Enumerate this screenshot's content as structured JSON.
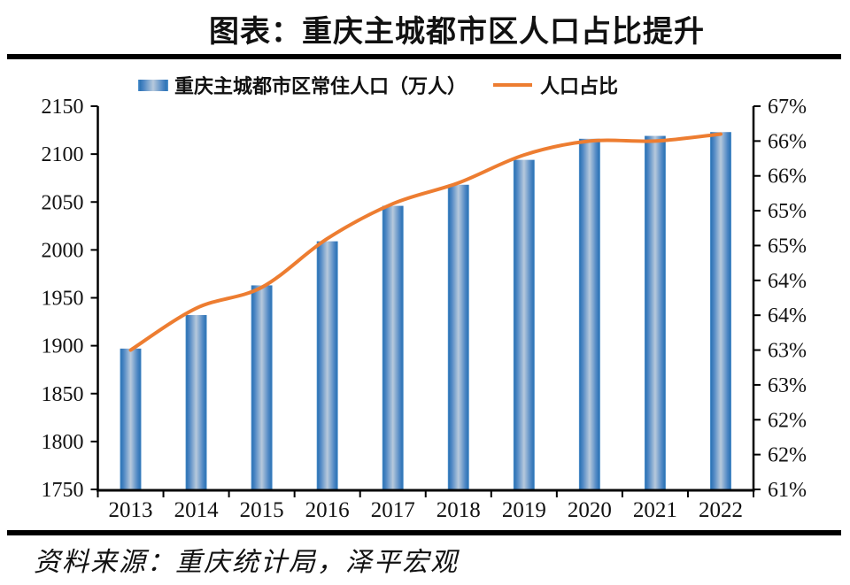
{
  "header": {
    "title": "图表：重庆主城都市区人口占比提升"
  },
  "legend": {
    "bar_label": "重庆主城都市区常住人口（万人）",
    "line_label": "人口占比"
  },
  "source": {
    "text": "资料来源：重庆统计局，泽平宏观"
  },
  "colors": {
    "bar_edge": "#2E74B5",
    "bar_light": "#5B9BD5",
    "bar_center": "#B7C9DC",
    "line": "#ED7D31",
    "axis": "#000000",
    "text": "#111111"
  },
  "chart_data": {
    "type": "bar",
    "subtype": "bar+line dual axis",
    "title": "图表：重庆主城都市区人口占比提升",
    "categories": [
      "2013",
      "2014",
      "2015",
      "2016",
      "2017",
      "2018",
      "2019",
      "2020",
      "2021",
      "2022"
    ],
    "series": [
      {
        "name": "重庆主城都市区常住人口（万人）",
        "type": "bar",
        "axis": "left",
        "values": [
          1897,
          1932,
          1963,
          2009,
          2046,
          2068,
          2094,
          2116,
          2119,
          2123
        ]
      },
      {
        "name": "人口占比",
        "type": "line",
        "axis": "right",
        "values": [
          63.0,
          63.6,
          63.9,
          64.6,
          65.1,
          65.4,
          65.8,
          66.0,
          66.0,
          66.1
        ]
      }
    ],
    "left_axis": {
      "min": 1750,
      "max": 2150,
      "step": 50,
      "tick_labels": [
        "2150",
        "2100",
        "2050",
        "2000",
        "1950",
        "1900",
        "1850",
        "1800",
        "1750"
      ]
    },
    "right_axis": {
      "min": 61,
      "max": 66.5,
      "step": 0.5,
      "tick_labels": [
        "67%",
        "66%",
        "66%",
        "65%",
        "65%",
        "64%",
        "64%",
        "63%",
        "63%",
        "62%",
        "62%",
        "61%"
      ]
    },
    "xlabel": "",
    "ylabel": "",
    "grid": false,
    "legend_position": "top"
  }
}
